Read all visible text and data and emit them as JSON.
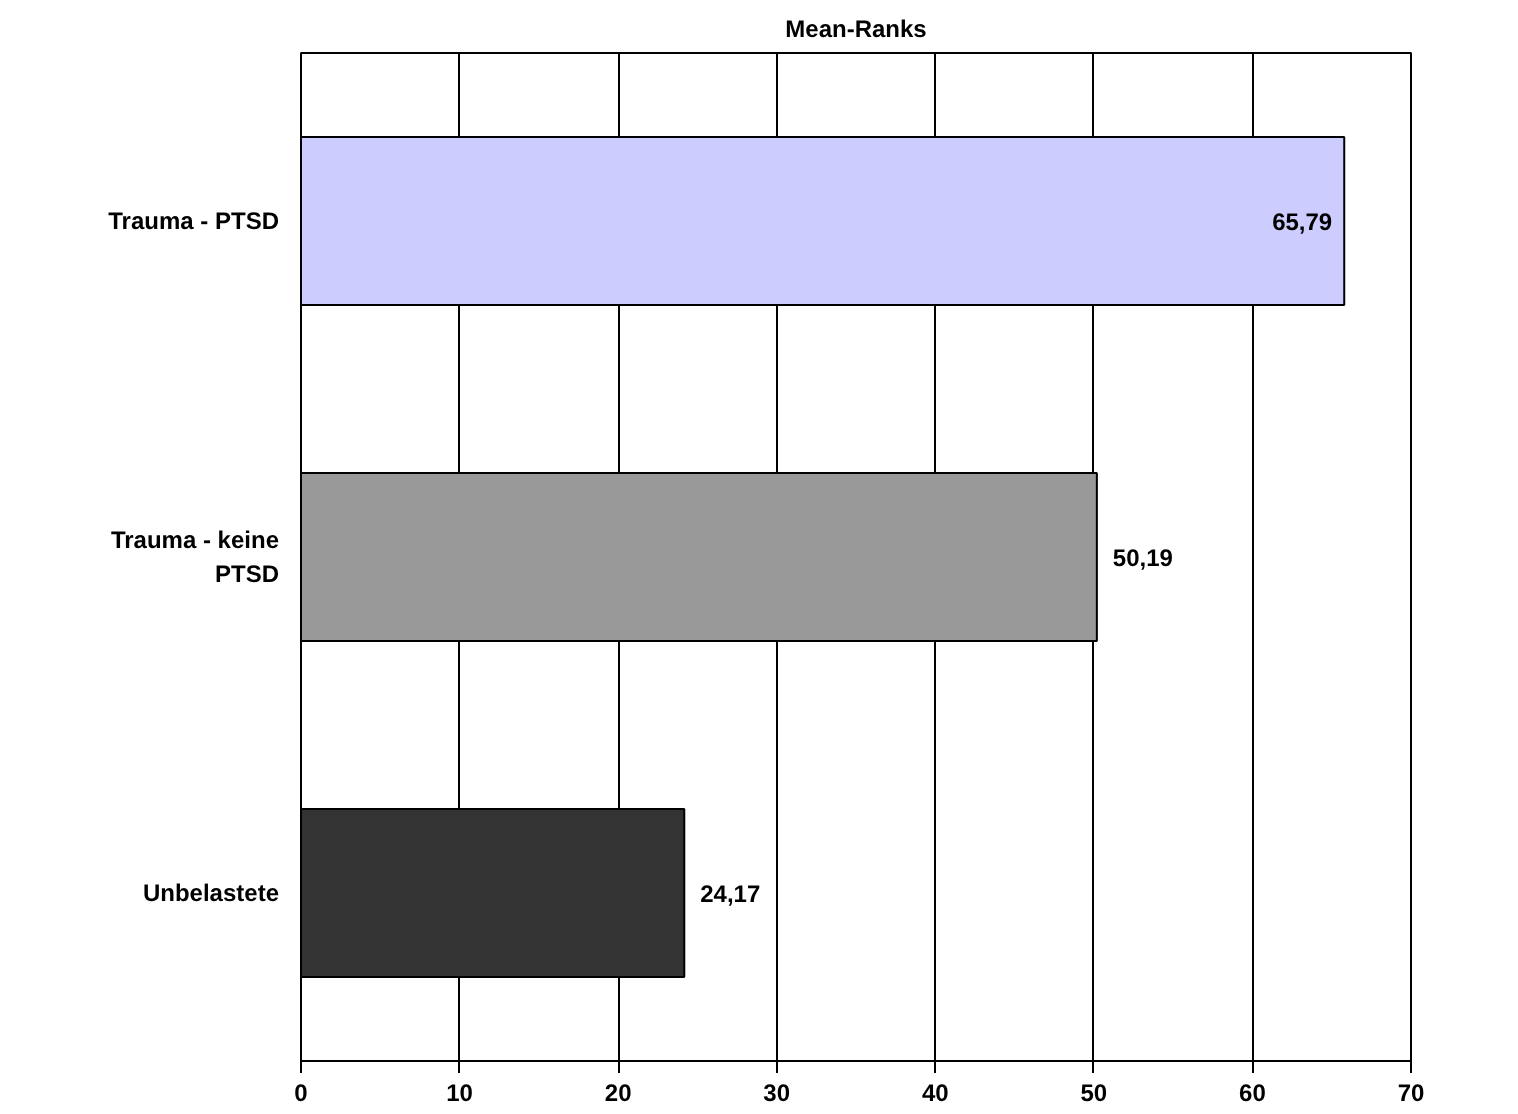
{
  "chart_data": {
    "type": "bar",
    "orientation": "horizontal",
    "title": "Mean-Ranks",
    "categories": [
      "Trauma - PTSD",
      "Trauma - keine PTSD",
      "Unbelastete"
    ],
    "values": [
      65.79,
      50.19,
      24.17
    ],
    "colors": [
      "#ccccff",
      "#999999",
      "#333333"
    ],
    "value_labels": [
      "65,79",
      "50,19",
      "24,17"
    ],
    "xlim": [
      0,
      70
    ],
    "xticks": [
      0,
      10,
      20,
      30,
      40,
      50,
      60,
      70
    ],
    "grid": "x"
  }
}
